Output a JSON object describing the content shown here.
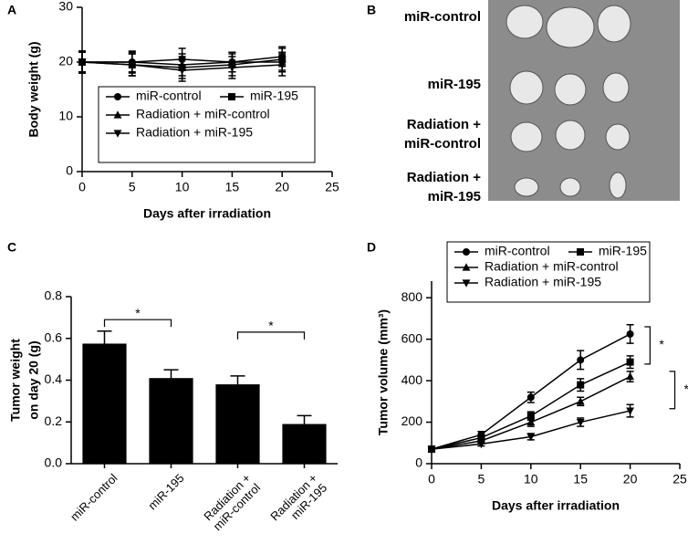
{
  "chart_data": [
    {
      "type": "line",
      "panel": "A",
      "xlabel": "Days after irradiation",
      "ylabel": "Body weight (g)",
      "x": [
        0,
        5,
        10,
        15,
        20
      ],
      "xlim": [
        0,
        25
      ],
      "xticks": [
        0,
        5,
        10,
        15,
        20,
        25
      ],
      "ylim": [
        0,
        30
      ],
      "yticks": [
        0,
        10,
        20,
        30
      ],
      "series": [
        {
          "name": "miR-control",
          "color": "#000000",
          "marker": "circle",
          "values": [
            20,
            20,
            20.5,
            20,
            21
          ],
          "errors": [
            2,
            2,
            2,
            1.8,
            1.8
          ]
        },
        {
          "name": "miR-195",
          "color": "#000000",
          "marker": "square",
          "values": [
            20,
            19.5,
            19,
            19.5,
            20.5
          ],
          "errors": [
            2,
            2,
            2,
            2,
            2
          ]
        },
        {
          "name": "Radiation + miR-control",
          "color": "#000000",
          "marker": "triangle-up",
          "values": [
            20,
            20,
            19.5,
            20,
            20
          ],
          "errors": [
            1.8,
            1.8,
            2,
            1.8,
            1.8
          ]
        },
        {
          "name": "Radiation + miR-195",
          "color": "#000000",
          "marker": "triangle-down",
          "values": [
            20,
            19.5,
            18.5,
            19,
            19.5
          ],
          "errors": [
            2,
            2,
            2,
            2,
            2
          ]
        }
      ]
    },
    {
      "type": "image",
      "panel": "B",
      "labels": [
        "miR-control",
        "miR-195",
        "Radiation + miR-control",
        "Radiation + miR-195"
      ]
    },
    {
      "type": "bar",
      "panel": "C",
      "ylabel": [
        "Tumor weight",
        "on day 20 (g)"
      ],
      "categories": [
        "miR-control",
        "miR-195",
        "Radiation + miR-control",
        "Radiation + miR-195"
      ],
      "values": [
        0.575,
        0.41,
        0.38,
        0.19
      ],
      "errors": [
        0.06,
        0.04,
        0.04,
        0.04
      ],
      "color": "#000000",
      "ylim": [
        0,
        0.8
      ],
      "yticks": [
        {
          "value": 0,
          "label": "0.0"
        },
        0.2,
        0.4,
        0.6,
        0.8
      ],
      "annotations": [
        {
          "text": "*",
          "from": 0,
          "to": 1,
          "y": 0.69
        },
        {
          "text": "*",
          "from": 2,
          "to": 3,
          "y": 0.63
        }
      ]
    },
    {
      "type": "line",
      "panel": "D",
      "xlabel": "Days after irradiation",
      "ylabel": "Tumor volume (mm³)",
      "x": [
        0,
        5,
        10,
        15,
        20
      ],
      "xlim": [
        0,
        25
      ],
      "xticks": [
        0,
        5,
        10,
        15,
        20,
        25
      ],
      "ylim": [
        0,
        880
      ],
      "yticks": [
        0,
        200,
        400,
        600,
        800
      ],
      "series": [
        {
          "name": "miR-control",
          "color": "#000000",
          "marker": "circle",
          "values": [
            70,
            140,
            320,
            500,
            625
          ],
          "errors": [
            5,
            15,
            25,
            45,
            45
          ]
        },
        {
          "name": "miR-195",
          "color": "#000000",
          "marker": "square",
          "values": [
            70,
            125,
            230,
            380,
            490
          ],
          "errors": [
            5,
            10,
            20,
            30,
            30
          ]
        },
        {
          "name": "Radiation + miR-control",
          "color": "#000000",
          "marker": "triangle-up",
          "values": [
            70,
            110,
            200,
            300,
            420
          ],
          "errors": [
            5,
            10,
            20,
            20,
            25
          ]
        },
        {
          "name": "Radiation + miR-195",
          "color": "#000000",
          "marker": "triangle-down",
          "values": [
            70,
            95,
            130,
            200,
            255
          ],
          "errors": [
            5,
            10,
            15,
            20,
            30
          ]
        }
      ],
      "annotations": [
        {
          "text": "*",
          "x": 22,
          "y": [
            480,
            660
          ]
        },
        {
          "text": "*",
          "x": 24.5,
          "y": [
            265,
            445
          ]
        }
      ]
    }
  ]
}
